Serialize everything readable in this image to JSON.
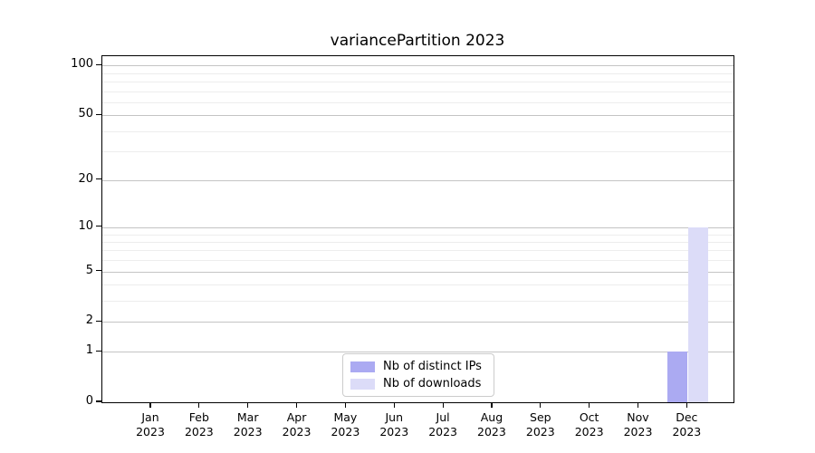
{
  "title": "variancePartition 2023",
  "colors": {
    "bar_ips": "#abaaf2",
    "bar_downloads": "#dcdcf8",
    "grid_major": "#c4c4c4",
    "grid_minor": "#ededed",
    "spine": "#000000",
    "legend_border": "#cccccc",
    "text": "#000000"
  },
  "legend": {
    "items": [
      {
        "label": "Nb of distinct IPs",
        "color_key": "bar_ips"
      },
      {
        "label": "Nb of downloads",
        "color_key": "bar_downloads"
      }
    ]
  },
  "y_axis": {
    "tick_labels": [
      "100",
      "50",
      "20",
      "10",
      "5",
      "2",
      "1",
      "0"
    ],
    "tick_values": [
      100,
      50,
      20,
      10,
      5,
      2,
      1,
      0
    ],
    "minor_values": [
      3,
      4,
      6,
      7,
      8,
      9,
      30,
      40,
      60,
      70,
      80,
      90
    ]
  },
  "x_axis": {
    "months": [
      "Jan",
      "Feb",
      "Mar",
      "Apr",
      "May",
      "Jun",
      "Jul",
      "Aug",
      "Sep",
      "Oct",
      "Nov",
      "Dec"
    ],
    "year": "2023"
  },
  "chart_data": {
    "type": "bar",
    "title": "variancePartition 2023",
    "categories": [
      "Jan 2023",
      "Feb 2023",
      "Mar 2023",
      "Apr 2023",
      "May 2023",
      "Jun 2023",
      "Jul 2023",
      "Aug 2023",
      "Sep 2023",
      "Oct 2023",
      "Nov 2023",
      "Dec 2023"
    ],
    "series": [
      {
        "name": "Nb of distinct IPs",
        "values": [
          0,
          0,
          0,
          0,
          0,
          0,
          0,
          0,
          0,
          0,
          0,
          1
        ]
      },
      {
        "name": "Nb of downloads",
        "values": [
          0,
          0,
          0,
          0,
          0,
          0,
          0,
          0,
          0,
          0,
          0,
          10
        ]
      }
    ],
    "yscale": "log1p",
    "y_ticks": [
      0,
      1,
      2,
      5,
      10,
      20,
      50,
      100
    ],
    "ylim_top_approx": 112,
    "grid": true,
    "legend_position": "lower center"
  }
}
